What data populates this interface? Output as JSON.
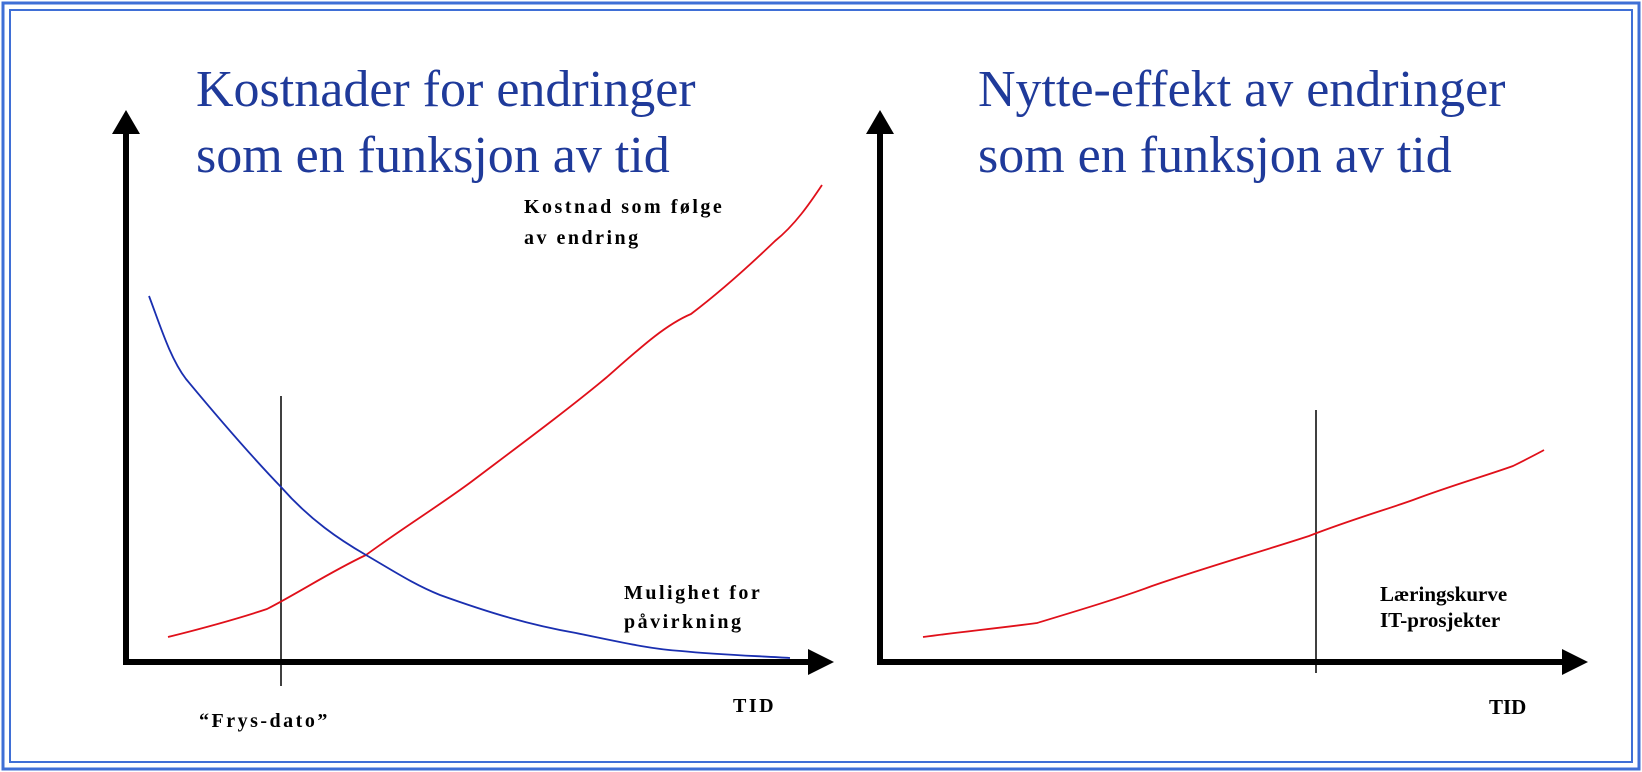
{
  "left": {
    "title": [
      "Kostnader for endringer",
      "som en funksjon av tid"
    ],
    "curve_labels": {
      "cost": [
        "Kostnad som følge",
        "av endring"
      ],
      "influence": [
        "Mulighet for",
        "påvirkning"
      ]
    },
    "freeze_label": "“Frys-dato”",
    "x_axis_label": "TID"
  },
  "right": {
    "title": [
      "Nytte-effekt av endringer",
      "som en funksjon av tid"
    ],
    "curve_label": [
      "Læringskurve",
      "IT-prosjekter"
    ],
    "x_axis_label": "TID"
  }
}
